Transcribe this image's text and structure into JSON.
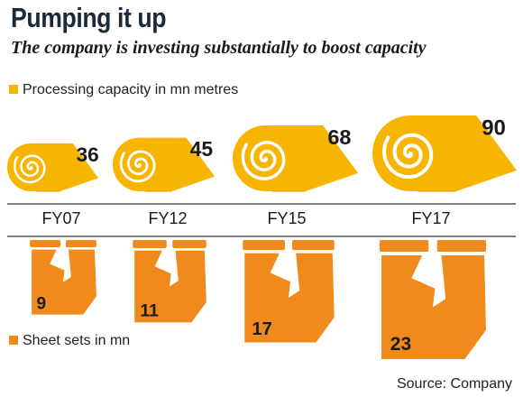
{
  "title": "Pumping it up",
  "subtitle": "The company is investing substantially to boost capacity",
  "source": "Source: Company",
  "colors": {
    "capacity": "#f7b500",
    "sheets": "#f08a1c",
    "axis": "#555555"
  },
  "chart_data": {
    "type": "bar",
    "categories": [
      "FY07",
      "FY12",
      "FY15",
      "FY17"
    ],
    "series": [
      {
        "name": "Processing capacity in mn metres",
        "values": [
          36,
          45,
          68,
          90
        ]
      },
      {
        "name": "Sheet sets in mn",
        "values": [
          9,
          11,
          17,
          23
        ]
      }
    ],
    "title": "Pumping it up",
    "subtitle": "The company is investing substantially to boost capacity",
    "xlabel": "",
    "ylabel": ""
  }
}
